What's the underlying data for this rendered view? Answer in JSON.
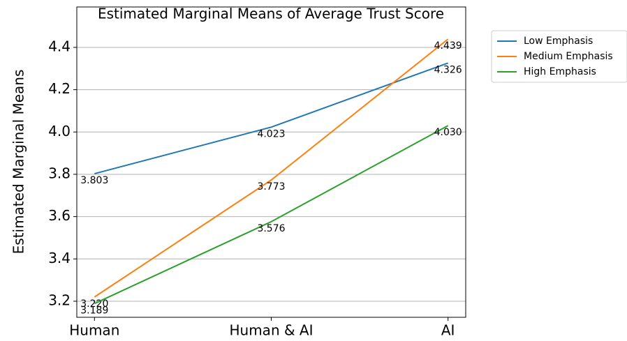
{
  "chart_data": {
    "type": "line",
    "title": "Estimated Marginal Means of Average Trust Score",
    "y_label": "Estimated Marginal Means",
    "categories": [
      "Human",
      "Human & AI",
      "AI"
    ],
    "series": [
      {
        "name": "Low Emphasis",
        "color": "#1f77b4",
        "values": [
          3.803,
          4.023,
          4.326
        ],
        "value_labels": [
          "3.803",
          "4.023",
          "4.326"
        ]
      },
      {
        "name": "Medium Emphasis",
        "color": "#ff7f0e",
        "values": [
          3.22,
          3.773,
          4.439
        ],
        "value_labels": [
          "3.220",
          "3.773",
          "4.439"
        ]
      },
      {
        "name": "High Emphasis",
        "color": "#2ca02c",
        "values": [
          3.189,
          3.576,
          4.03
        ],
        "value_labels": [
          "3.189",
          "3.576",
          "4.030"
        ]
      }
    ],
    "ylim": [
      3.124,
      4.591
    ],
    "yticks": [
      3.2,
      3.4,
      3.6,
      3.8,
      {
        "value": 4,
        "label": "4.0"
      },
      4.2,
      4.4
    ],
    "grid": true,
    "legend": "outside-upper-right"
  }
}
